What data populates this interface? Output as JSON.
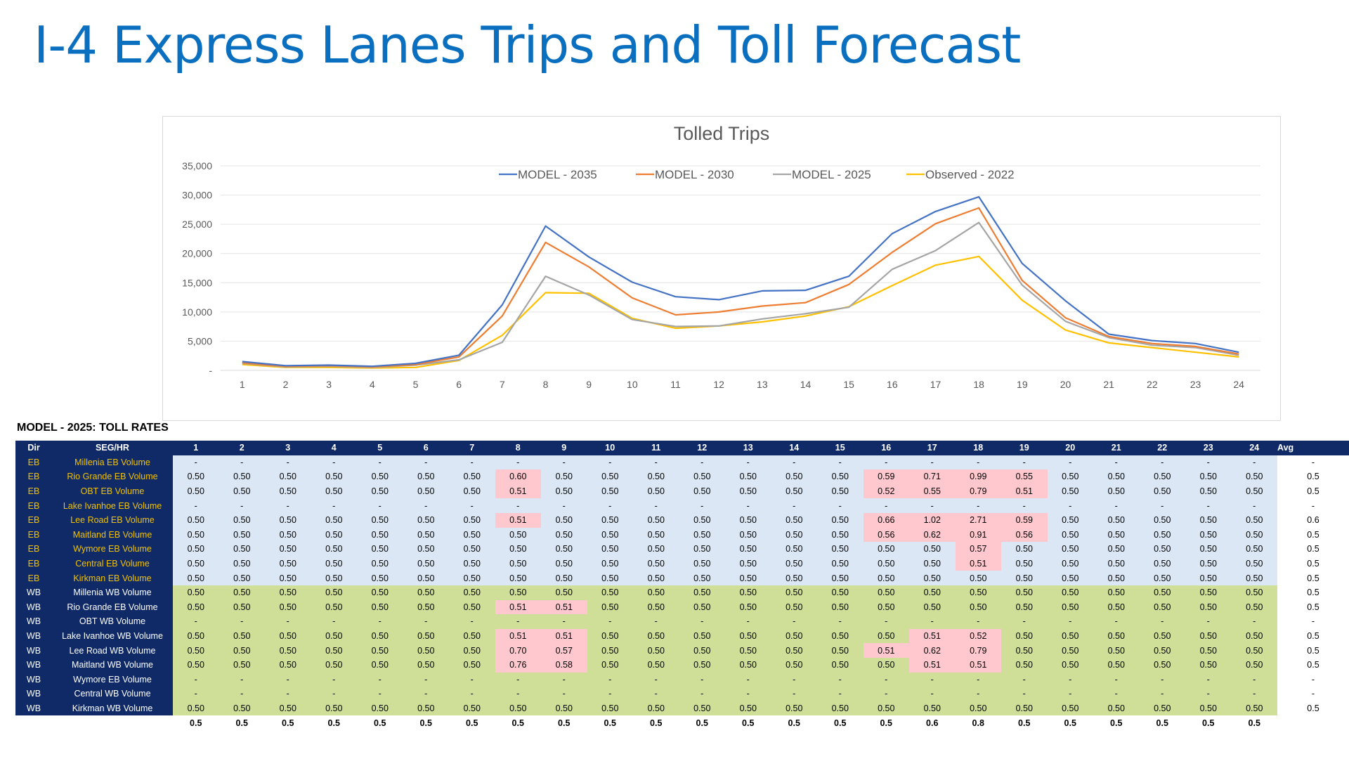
{
  "slide": {
    "title": "I-4 Express Lanes Trips and Toll Forecast"
  },
  "chart_data": {
    "type": "line",
    "title": "Tolled Trips",
    "xlabel": "",
    "ylabel": "",
    "legend_position": "top",
    "grid": true,
    "ylim": [
      0,
      35000
    ],
    "y_ticks": [
      "-",
      "5,000",
      "10,000",
      "15,000",
      "20,000",
      "25,000",
      "30,000",
      "35,000"
    ],
    "categories": [
      "1",
      "2",
      "3",
      "4",
      "5",
      "6",
      "7",
      "8",
      "9",
      "10",
      "11",
      "12",
      "13",
      "14",
      "15",
      "16",
      "17",
      "18",
      "19",
      "20",
      "21",
      "22",
      "23",
      "24"
    ],
    "series": [
      {
        "name": "MODEL - 2035",
        "color": "#4472c4",
        "values": [
          1500,
          800,
          900,
          700,
          1200,
          2600,
          11200,
          24700,
          19400,
          15100,
          12600,
          12100,
          13600,
          13700,
          16100,
          23400,
          27200,
          29700,
          18300,
          11900,
          6200,
          5100,
          4600,
          3100
        ]
      },
      {
        "name": "MODEL - 2030",
        "color": "#ed7d31",
        "values": [
          1300,
          700,
          800,
          600,
          1000,
          2300,
          9300,
          21900,
          17700,
          12400,
          9500,
          10000,
          11000,
          11600,
          14700,
          20200,
          25100,
          27800,
          15400,
          9000,
          5800,
          4600,
          4100,
          2800
        ]
      },
      {
        "name": "MODEL - 2025",
        "color": "#a5a5a5",
        "values": [
          1200,
          600,
          700,
          500,
          900,
          1800,
          4800,
          16100,
          12900,
          8700,
          7500,
          7600,
          8800,
          9700,
          10800,
          17300,
          20500,
          25300,
          14600,
          8400,
          5600,
          4300,
          3900,
          2600
        ]
      },
      {
        "name": "Observed - 2022",
        "color": "#ffc000",
        "values": [
          1000,
          500,
          500,
          400,
          500,
          1700,
          6000,
          13300,
          13200,
          8900,
          7200,
          7600,
          8300,
          9300,
          10900,
          14500,
          18000,
          19500,
          12000,
          6900,
          4700,
          3900,
          3100,
          2300
        ]
      }
    ]
  },
  "table": {
    "title": "MODEL - 2025: TOLL RATES",
    "headers": {
      "dir": "Dir",
      "seg": "SEG/HR",
      "hours": [
        "1",
        "2",
        "3",
        "4",
        "5",
        "6",
        "7",
        "8",
        "9",
        "10",
        "11",
        "12",
        "13",
        "14",
        "15",
        "16",
        "17",
        "18",
        "19",
        "20",
        "21",
        "22",
        "23",
        "24"
      ],
      "avg": "Avg"
    },
    "rows": [
      {
        "dir": "EB",
        "seg": "Millenia EB Volume",
        "values": [
          "-",
          "-",
          "-",
          "-",
          "-",
          "-",
          "-",
          "-",
          "-",
          "-",
          "-",
          "-",
          "-",
          "-",
          "-",
          "-",
          "-",
          "-",
          "-",
          "-",
          "-",
          "-",
          "-",
          "-"
        ],
        "highlight": [],
        "avg": "-"
      },
      {
        "dir": "EB",
        "seg": "Rio Grande EB Volume",
        "values": [
          "0.50",
          "0.50",
          "0.50",
          "0.50",
          "0.50",
          "0.50",
          "0.50",
          "0.60",
          "0.50",
          "0.50",
          "0.50",
          "0.50",
          "0.50",
          "0.50",
          "0.50",
          "0.59",
          "0.71",
          "0.99",
          "0.55",
          "0.50",
          "0.50",
          "0.50",
          "0.50",
          "0.50"
        ],
        "highlight": [
          8,
          16,
          17,
          18,
          19
        ],
        "avg": "0.5"
      },
      {
        "dir": "EB",
        "seg": "OBT EB Volume",
        "values": [
          "0.50",
          "0.50",
          "0.50",
          "0.50",
          "0.50",
          "0.50",
          "0.50",
          "0.51",
          "0.50",
          "0.50",
          "0.50",
          "0.50",
          "0.50",
          "0.50",
          "0.50",
          "0.52",
          "0.55",
          "0.79",
          "0.51",
          "0.50",
          "0.50",
          "0.50",
          "0.50",
          "0.50"
        ],
        "highlight": [
          8,
          16,
          17,
          18,
          19
        ],
        "avg": "0.5"
      },
      {
        "dir": "EB",
        "seg": "Lake Ivanhoe EB Volume",
        "values": [
          "-",
          "-",
          "-",
          "-",
          "-",
          "-",
          "-",
          "-",
          "-",
          "-",
          "-",
          "-",
          "-",
          "-",
          "-",
          "-",
          "-",
          "-",
          "-",
          "-",
          "-",
          "-",
          "-",
          "-"
        ],
        "highlight": [],
        "avg": "-"
      },
      {
        "dir": "EB",
        "seg": "Lee Road EB Volume",
        "values": [
          "0.50",
          "0.50",
          "0.50",
          "0.50",
          "0.50",
          "0.50",
          "0.50",
          "0.51",
          "0.50",
          "0.50",
          "0.50",
          "0.50",
          "0.50",
          "0.50",
          "0.50",
          "0.66",
          "1.02",
          "2.71",
          "0.59",
          "0.50",
          "0.50",
          "0.50",
          "0.50",
          "0.50"
        ],
        "highlight": [
          8,
          16,
          17,
          18,
          19
        ],
        "avg": "0.6"
      },
      {
        "dir": "EB",
        "seg": "Maitland EB Volume",
        "values": [
          "0.50",
          "0.50",
          "0.50",
          "0.50",
          "0.50",
          "0.50",
          "0.50",
          "0.50",
          "0.50",
          "0.50",
          "0.50",
          "0.50",
          "0.50",
          "0.50",
          "0.50",
          "0.56",
          "0.62",
          "0.91",
          "0.56",
          "0.50",
          "0.50",
          "0.50",
          "0.50",
          "0.50"
        ],
        "highlight": [
          16,
          17,
          18,
          19
        ],
        "avg": "0.5"
      },
      {
        "dir": "EB",
        "seg": "Wymore EB Volume",
        "values": [
          "0.50",
          "0.50",
          "0.50",
          "0.50",
          "0.50",
          "0.50",
          "0.50",
          "0.50",
          "0.50",
          "0.50",
          "0.50",
          "0.50",
          "0.50",
          "0.50",
          "0.50",
          "0.50",
          "0.50",
          "0.57",
          "0.50",
          "0.50",
          "0.50",
          "0.50",
          "0.50",
          "0.50"
        ],
        "highlight": [
          18
        ],
        "avg": "0.5"
      },
      {
        "dir": "EB",
        "seg": "Central EB Volume",
        "values": [
          "0.50",
          "0.50",
          "0.50",
          "0.50",
          "0.50",
          "0.50",
          "0.50",
          "0.50",
          "0.50",
          "0.50",
          "0.50",
          "0.50",
          "0.50",
          "0.50",
          "0.50",
          "0.50",
          "0.50",
          "0.51",
          "0.50",
          "0.50",
          "0.50",
          "0.50",
          "0.50",
          "0.50"
        ],
        "highlight": [
          18
        ],
        "avg": "0.5"
      },
      {
        "dir": "EB",
        "seg": "Kirkman EB Volume",
        "values": [
          "0.50",
          "0.50",
          "0.50",
          "0.50",
          "0.50",
          "0.50",
          "0.50",
          "0.50",
          "0.50",
          "0.50",
          "0.50",
          "0.50",
          "0.50",
          "0.50",
          "0.50",
          "0.50",
          "0.50",
          "0.50",
          "0.50",
          "0.50",
          "0.50",
          "0.50",
          "0.50",
          "0.50"
        ],
        "highlight": [],
        "avg": "0.5"
      },
      {
        "dir": "WB",
        "seg": "Millenia WB Volume",
        "values": [
          "0.50",
          "0.50",
          "0.50",
          "0.50",
          "0.50",
          "0.50",
          "0.50",
          "0.50",
          "0.50",
          "0.50",
          "0.50",
          "0.50",
          "0.50",
          "0.50",
          "0.50",
          "0.50",
          "0.50",
          "0.50",
          "0.50",
          "0.50",
          "0.50",
          "0.50",
          "0.50",
          "0.50"
        ],
        "highlight": [],
        "avg": "0.5"
      },
      {
        "dir": "WB",
        "seg": "Rio Grande EB Volume",
        "values": [
          "0.50",
          "0.50",
          "0.50",
          "0.50",
          "0.50",
          "0.50",
          "0.50",
          "0.51",
          "0.51",
          "0.50",
          "0.50",
          "0.50",
          "0.50",
          "0.50",
          "0.50",
          "0.50",
          "0.50",
          "0.50",
          "0.50",
          "0.50",
          "0.50",
          "0.50",
          "0.50",
          "0.50"
        ],
        "highlight": [
          8,
          9
        ],
        "avg": "0.5"
      },
      {
        "dir": "WB",
        "seg": "OBT WB Volume",
        "values": [
          "-",
          "-",
          "-",
          "-",
          "-",
          "-",
          "-",
          "-",
          "-",
          "-",
          "-",
          "-",
          "-",
          "-",
          "-",
          "-",
          "-",
          "-",
          "-",
          "-",
          "-",
          "-",
          "-",
          "-"
        ],
        "highlight": [],
        "avg": "-"
      },
      {
        "dir": "WB",
        "seg": "Lake Ivanhoe WB Volume",
        "values": [
          "0.50",
          "0.50",
          "0.50",
          "0.50",
          "0.50",
          "0.50",
          "0.50",
          "0.51",
          "0.51",
          "0.50",
          "0.50",
          "0.50",
          "0.50",
          "0.50",
          "0.50",
          "0.50",
          "0.51",
          "0.52",
          "0.50",
          "0.50",
          "0.50",
          "0.50",
          "0.50",
          "0.50"
        ],
        "highlight": [
          8,
          9,
          17,
          18
        ],
        "avg": "0.5"
      },
      {
        "dir": "WB",
        "seg": "Lee Road WB Volume",
        "values": [
          "0.50",
          "0.50",
          "0.50",
          "0.50",
          "0.50",
          "0.50",
          "0.50",
          "0.70",
          "0.57",
          "0.50",
          "0.50",
          "0.50",
          "0.50",
          "0.50",
          "0.50",
          "0.51",
          "0.62",
          "0.79",
          "0.50",
          "0.50",
          "0.50",
          "0.50",
          "0.50",
          "0.50"
        ],
        "highlight": [
          8,
          9,
          16,
          17,
          18
        ],
        "avg": "0.5"
      },
      {
        "dir": "WB",
        "seg": "Maitland WB Volume",
        "values": [
          "0.50",
          "0.50",
          "0.50",
          "0.50",
          "0.50",
          "0.50",
          "0.50",
          "0.76",
          "0.58",
          "0.50",
          "0.50",
          "0.50",
          "0.50",
          "0.50",
          "0.50",
          "0.50",
          "0.51",
          "0.51",
          "0.50",
          "0.50",
          "0.50",
          "0.50",
          "0.50",
          "0.50"
        ],
        "highlight": [
          8,
          9,
          17,
          18
        ],
        "avg": "0.5"
      },
      {
        "dir": "WB",
        "seg": "Wymore EB Volume",
        "values": [
          "-",
          "-",
          "-",
          "-",
          "-",
          "-",
          "-",
          "-",
          "-",
          "-",
          "-",
          "-",
          "-",
          "-",
          "-",
          "-",
          "-",
          "-",
          "-",
          "-",
          "-",
          "-",
          "-",
          "-"
        ],
        "highlight": [],
        "avg": "-"
      },
      {
        "dir": "WB",
        "seg": "Central WB Volume",
        "values": [
          "-",
          "-",
          "-",
          "-",
          "-",
          "-",
          "-",
          "-",
          "-",
          "-",
          "-",
          "-",
          "-",
          "-",
          "-",
          "-",
          "-",
          "-",
          "-",
          "-",
          "-",
          "-",
          "-",
          "-"
        ],
        "highlight": [],
        "avg": "-"
      },
      {
        "dir": "WB",
        "seg": "Kirkman WB Volume",
        "values": [
          "0.50",
          "0.50",
          "0.50",
          "0.50",
          "0.50",
          "0.50",
          "0.50",
          "0.50",
          "0.50",
          "0.50",
          "0.50",
          "0.50",
          "0.50",
          "0.50",
          "0.50",
          "0.50",
          "0.50",
          "0.50",
          "0.50",
          "0.50",
          "0.50",
          "0.50",
          "0.50",
          "0.50"
        ],
        "highlight": [],
        "avg": "0.5"
      }
    ],
    "footer": [
      "0.5",
      "0.5",
      "0.5",
      "0.5",
      "0.5",
      "0.5",
      "0.5",
      "0.5",
      "0.5",
      "0.5",
      "0.5",
      "0.5",
      "0.5",
      "0.5",
      "0.5",
      "0.5",
      "0.6",
      "0.8",
      "0.5",
      "0.5",
      "0.5",
      "0.5",
      "0.5",
      "0.5"
    ],
    "colors": {
      "header_bg": "#0f2a66",
      "eb_label": "#f2c200",
      "eb_fill": "#dbe7f5",
      "wb_fill": "#cfdf97",
      "highlight": "#ffc7ce"
    }
  }
}
